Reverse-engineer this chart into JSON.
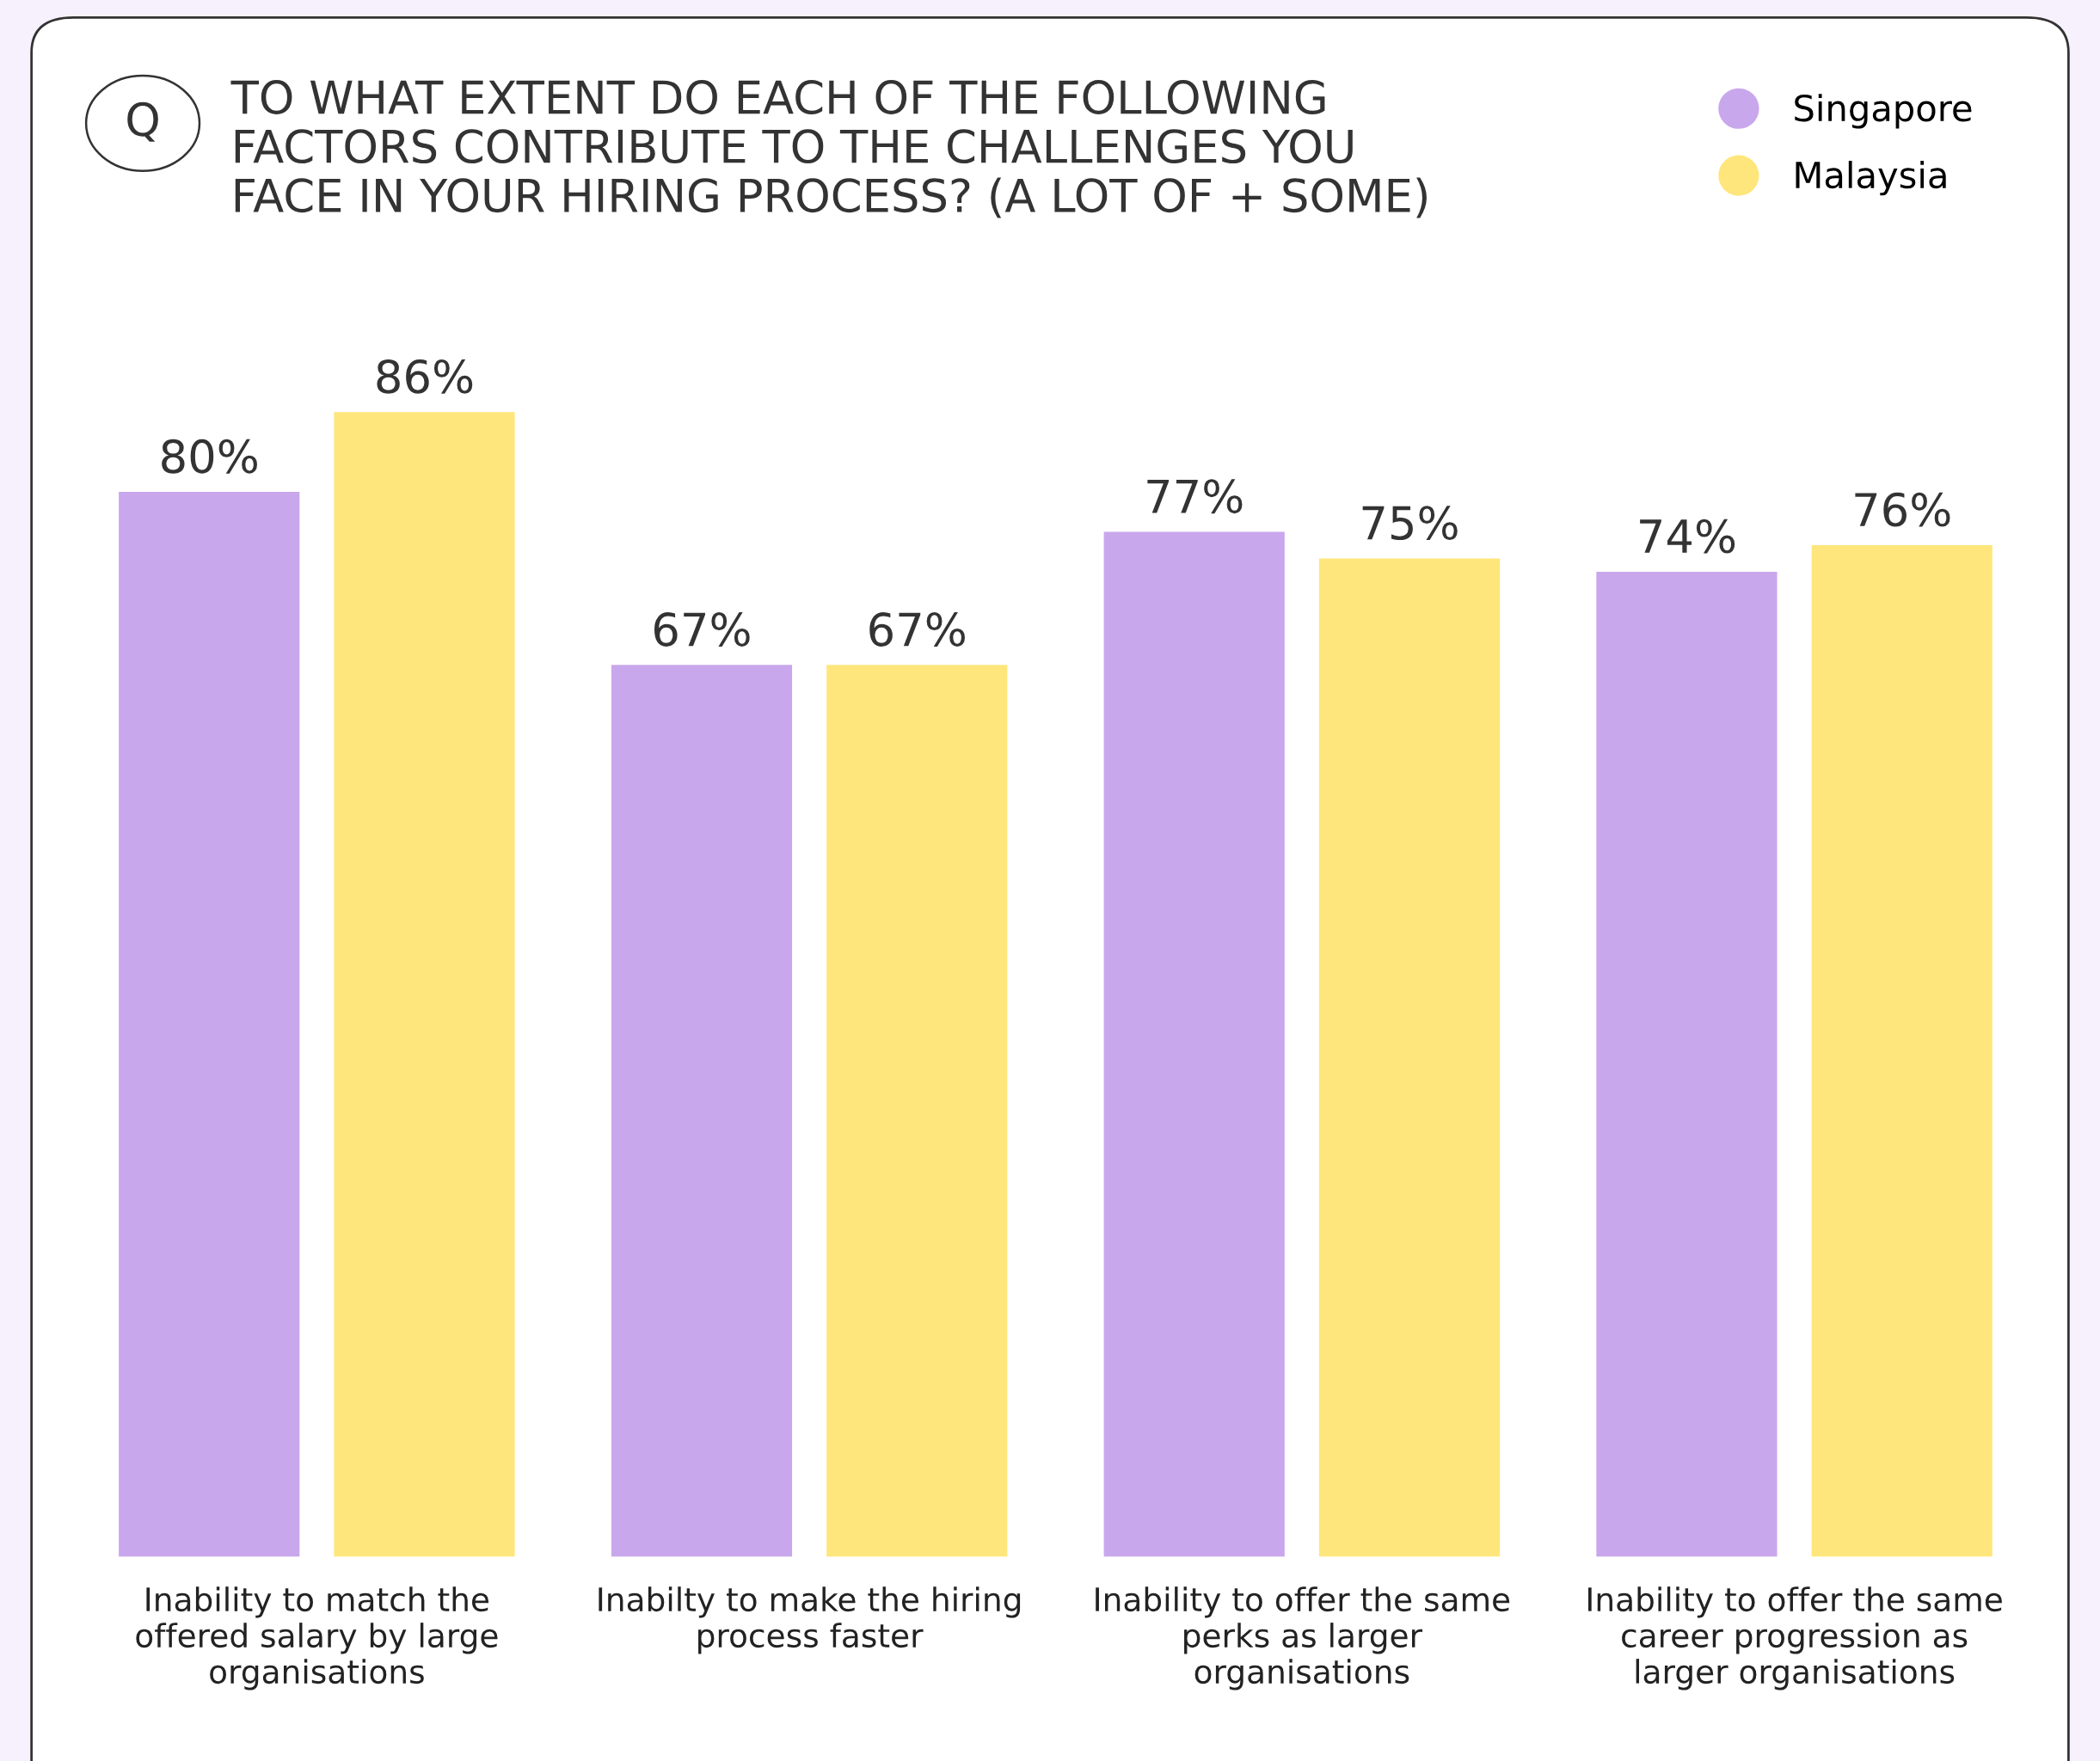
{
  "chart_data": {
    "type": "bar",
    "title": "TO WHAT EXTENT DO EACH OF THE FOLLOWING\nFACTORS CONTRIBUTE TO THE CHALLENGES YOU\nFACE IN YOUR HIRING PROCESS? (A LOT OF + SOME)",
    "annotations": [
      "Q"
    ],
    "categories": [
      "Inability to match the\noffered salary by large\norganisations",
      "Inabilty to make the hiring\nprocess faster",
      "Inability to offer the same\nperks as larger\norganisations",
      "Inability to offer the same\ncareer progression as\nlarger organisations"
    ],
    "series": [
      {
        "name": "Singapore",
        "color": "#c9a7ec",
        "values": [
          80,
          67,
          77,
          74
        ],
        "value_labels": [
          "80%",
          "67%",
          "77%",
          "74%"
        ]
      },
      {
        "name": "Malaysia",
        "color": "#ffe67c",
        "values": [
          86,
          67,
          75,
          76
        ],
        "value_labels": [
          "86%",
          "67%",
          "75%",
          "76%"
        ]
      }
    ],
    "legend": "top right"
  }
}
